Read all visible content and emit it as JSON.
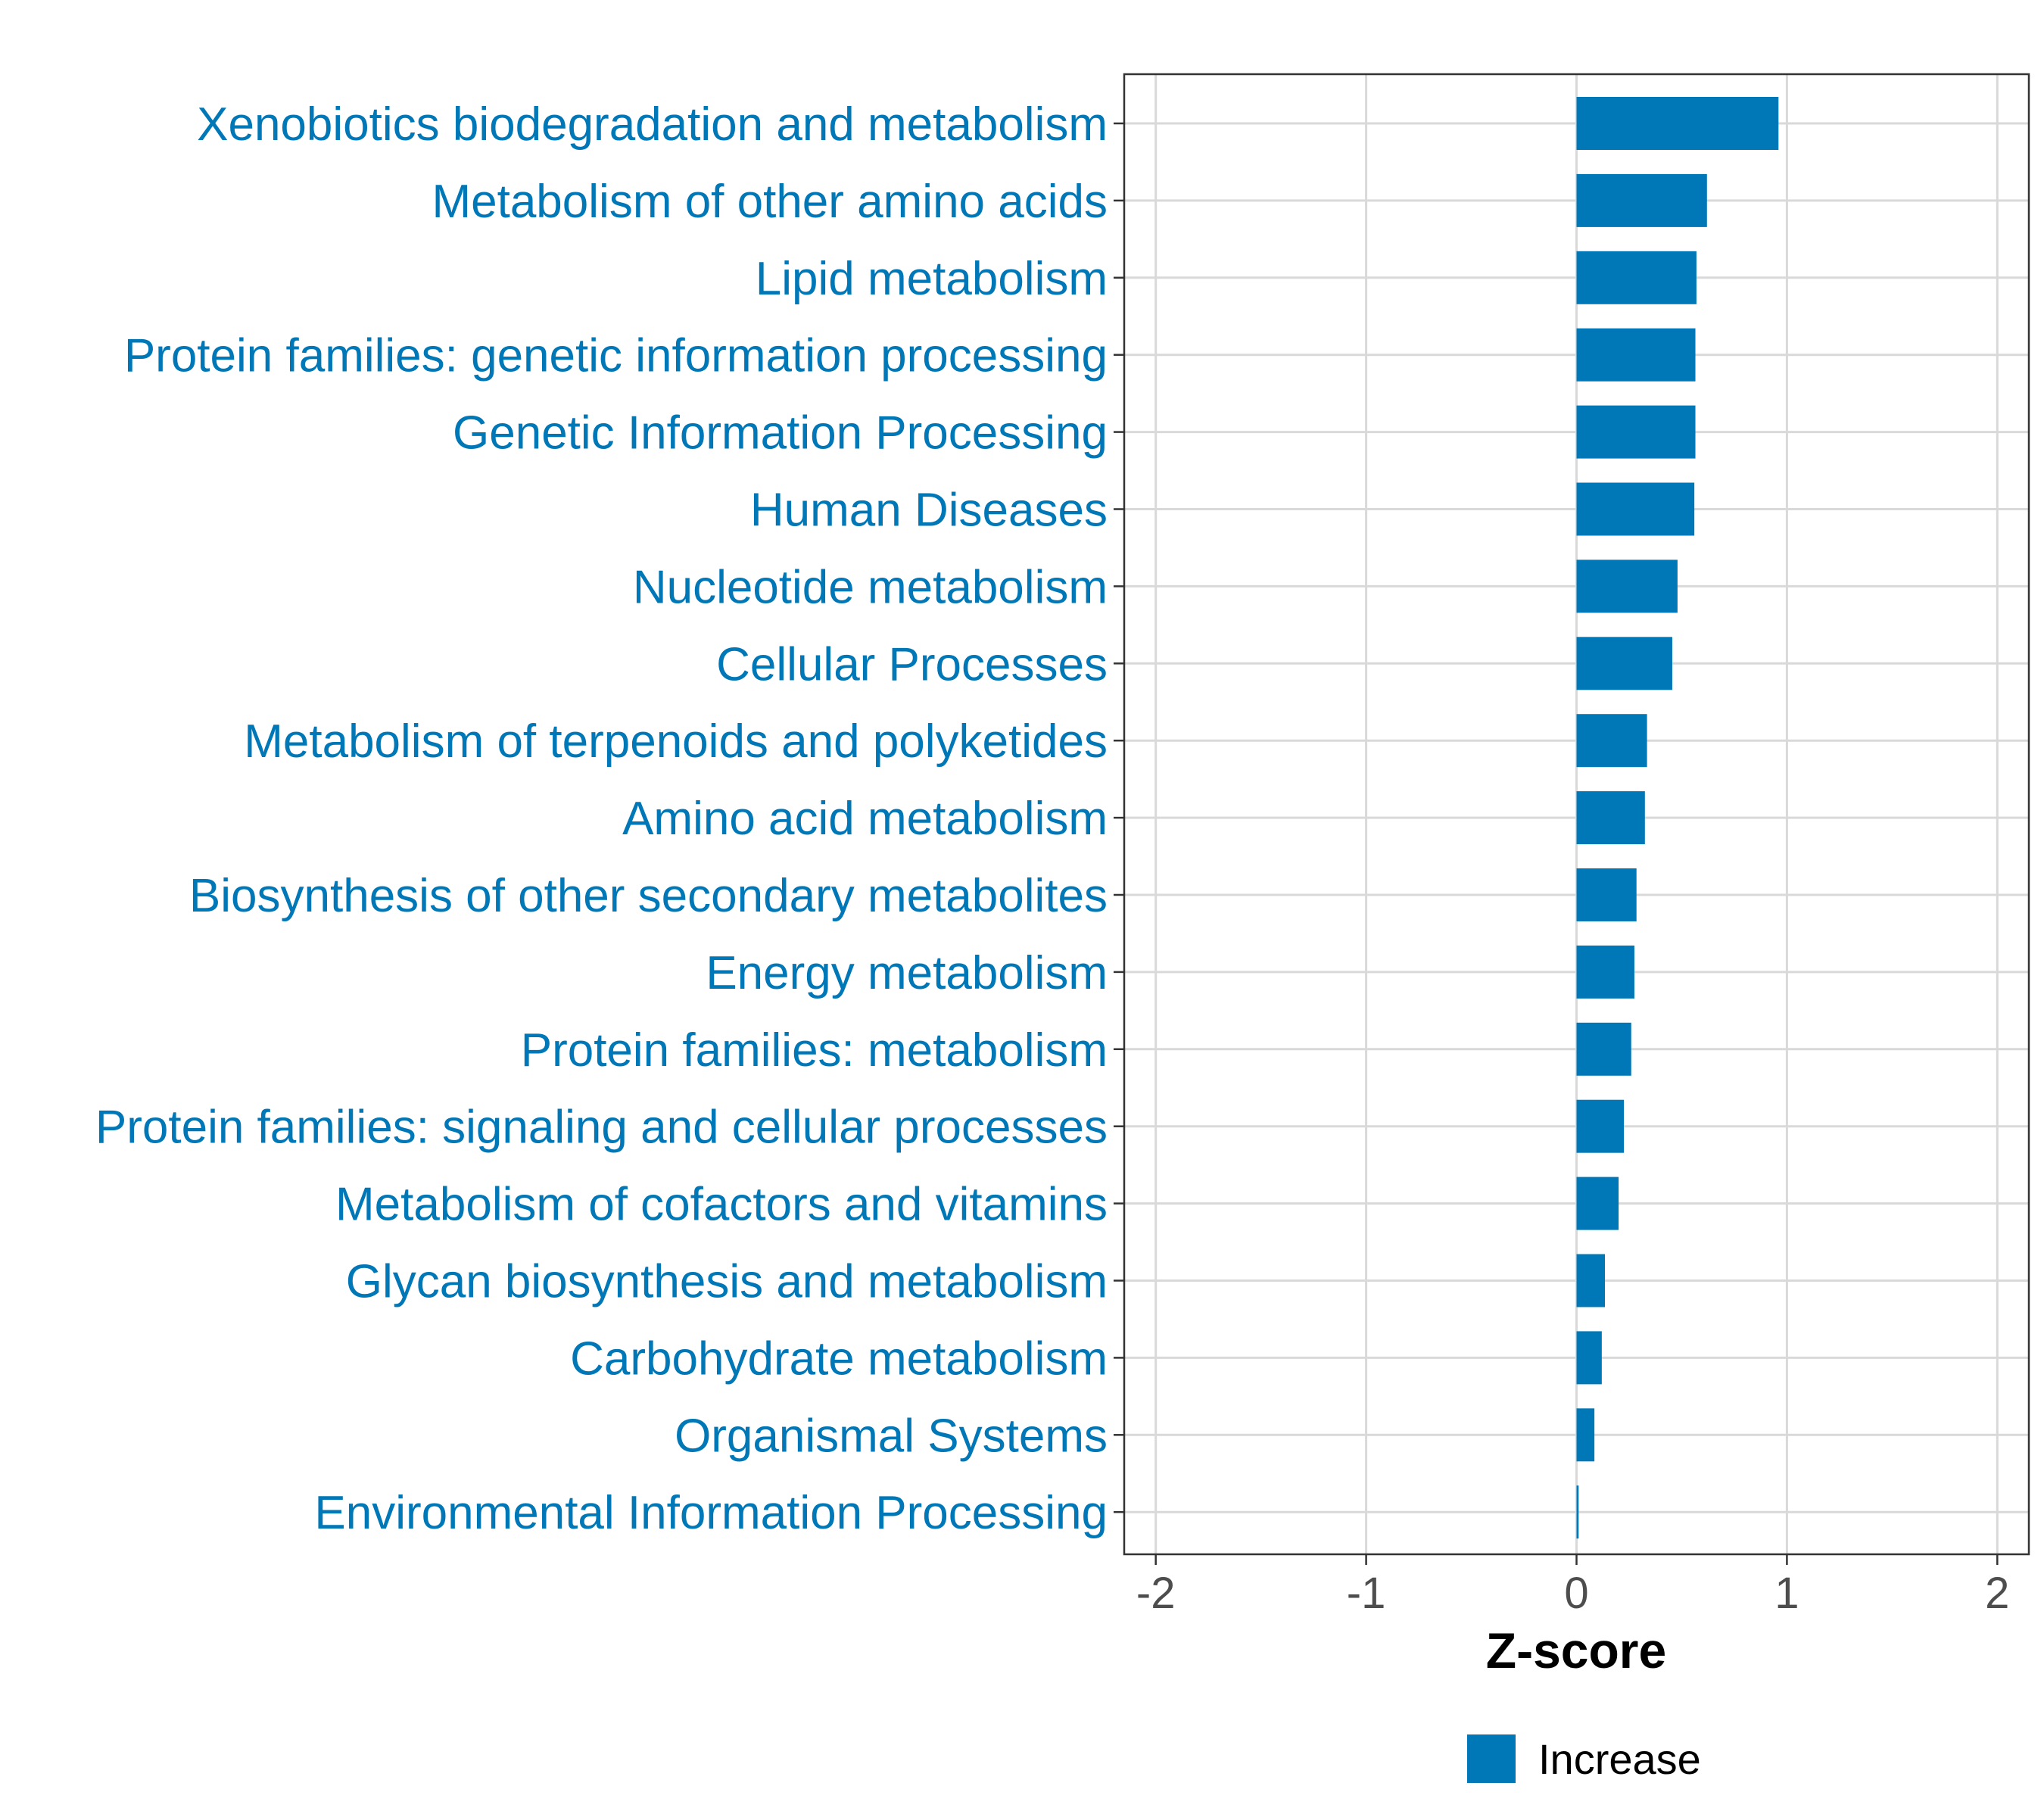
{
  "colors": {
    "bar": "#0077b6",
    "category_text": "#0077b6",
    "grid": "#d9d9d9",
    "axis": "#333333"
  },
  "chart_data": {
    "type": "bar",
    "orientation": "horizontal",
    "title": "",
    "xlabel": "Z-score",
    "ylabel": "",
    "xlim": [
      -2.15,
      2.15
    ],
    "xticks": [
      -2,
      -1,
      0,
      1,
      2
    ],
    "xtick_labels": [
      "-2",
      "-1",
      "0",
      "1",
      "2"
    ],
    "grid": true,
    "legend": {
      "position": "bottom",
      "entries": [
        {
          "name": "Increase",
          "color": "#0077b6"
        }
      ]
    },
    "categories": [
      "Xenobiotics biodegradation and metabolism",
      "Metabolism of other amino acids",
      "Lipid metabolism",
      "Protein families: genetic information processing",
      "Genetic Information Processing",
      "Human Diseases",
      "Nucleotide metabolism",
      "Cellular Processes",
      "Metabolism of terpenoids and polyketides",
      "Amino acid metabolism",
      "Biosynthesis of other secondary metabolites",
      "Energy metabolism",
      "Protein families: metabolism",
      "Protein families: signaling and cellular processes",
      "Metabolism of cofactors and vitamins",
      "Glycan biosynthesis and metabolism",
      "Carbohydrate metabolism",
      "Organismal Systems",
      "Environmental Information Processing"
    ],
    "series": [
      {
        "name": "Increase",
        "values": [
          0.96,
          0.62,
          0.57,
          0.565,
          0.565,
          0.56,
          0.48,
          0.455,
          0.335,
          0.325,
          0.285,
          0.275,
          0.26,
          0.225,
          0.2,
          0.135,
          0.12,
          0.085,
          0.01
        ]
      }
    ]
  }
}
